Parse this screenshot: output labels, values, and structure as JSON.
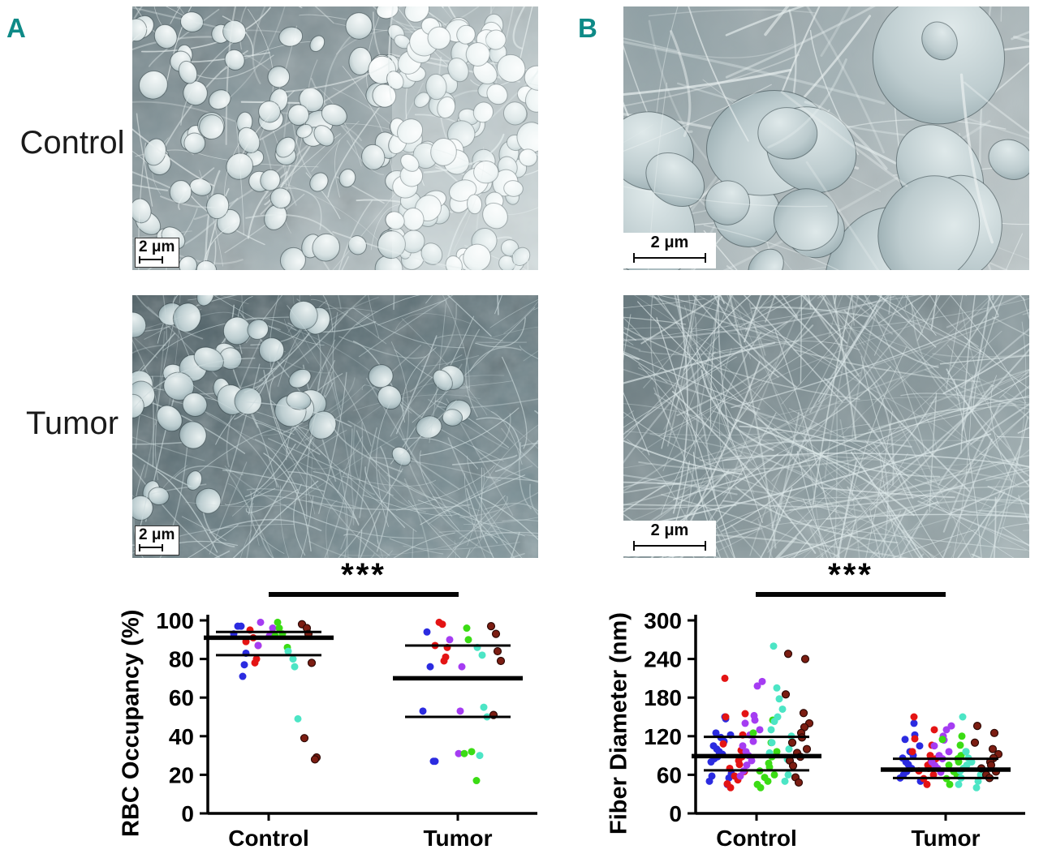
{
  "figure": {
    "panel_a_label": "A",
    "panel_b_label": "B",
    "row_labels": [
      "Control",
      "Tumor"
    ],
    "accent_color": "#0e8a87",
    "scale_bar_label": "2 μm"
  },
  "micrographs": [
    {
      "panel": "A",
      "row": "Control",
      "scale_label": "2 μm",
      "content": "SEM: red blood cells densely packed in fibrin clot"
    },
    {
      "panel": "B",
      "row": "Control",
      "scale_label": "2 μm",
      "content": "SEM close-up: thick fibrin fibers over large red blood cells"
    },
    {
      "panel": "A",
      "row": "Tumor",
      "scale_label": "2 μm",
      "content": "SEM: sparse red blood cells on dense fine fibrin network"
    },
    {
      "panel": "B",
      "row": "Tumor",
      "scale_label": "2 μm",
      "content": "SEM close-up: dense mesh of thin fibrin fibers"
    }
  ],
  "chart_data": [
    {
      "type": "scatter",
      "title": "",
      "ylabel": "RBC Occupancy (%)",
      "xlabel": "",
      "ylim": [
        0,
        100
      ],
      "yticks": [
        0,
        20,
        40,
        60,
        80,
        100
      ],
      "categories": [
        "Control",
        "Tumor"
      ],
      "significance": "***",
      "legend": "none",
      "grid": false,
      "point_colors": {
        "blue": "#2b2be0",
        "red": "#e41414",
        "purple": "#a53cf2",
        "green": "#3bdc14",
        "teal": "#4ce5c5",
        "darkred": "#7c1d12"
      },
      "line_color": "#000000",
      "groups": [
        {
          "name": "Control",
          "lines": {
            "mean": 91,
            "upper": 94,
            "lower": 82
          },
          "points": {
            "blue": [
              97,
              97,
              93,
              83,
              77,
              71
            ],
            "red": [
              95,
              91,
              89,
              87,
              80,
              78
            ],
            "purple": [
              99,
              96,
              93,
              92,
              87
            ],
            "green": [
              99,
              96,
              93,
              92,
              86
            ],
            "teal": [
              84,
              80,
              76,
              49
            ],
            "darkred": [
              98,
              96,
              93,
              78,
              39,
              29,
              28
            ]
          }
        },
        {
          "name": "Tumor",
          "lines": {
            "mean": 70,
            "upper": 87,
            "lower": 50
          },
          "points": {
            "blue": [
              94,
              76,
              53,
              27,
              27
            ],
            "red": [
              99,
              98,
              87,
              86,
              81,
              79
            ],
            "purple": [
              90,
              76,
              53,
              31
            ],
            "green": [
              96,
              90,
              32,
              31,
              17
            ],
            "teal": [
              86,
              82,
              55,
              50,
              30
            ],
            "darkred": [
              97,
              93,
              84,
              79,
              51
            ]
          }
        }
      ]
    },
    {
      "type": "scatter",
      "title": "",
      "ylabel": "Fiber Diameter (nm)",
      "xlabel": "",
      "ylim": [
        0,
        300
      ],
      "yticks": [
        0,
        60,
        120,
        180,
        240,
        300
      ],
      "categories": [
        "Control",
        "Tumor"
      ],
      "significance": "***",
      "legend": "none",
      "grid": false,
      "point_colors": {
        "blue": "#2b2be0",
        "red": "#e41414",
        "purple": "#a53cf2",
        "green": "#3bdc14",
        "teal": "#4ce5c5",
        "darkred": "#7c1d12"
      },
      "line_color": "#000000",
      "groups": [
        {
          "name": "Control",
          "lines": {
            "mean": 89,
            "upper": 119,
            "lower": 67
          },
          "points": {
            "blue": [
              150,
              147,
              125,
              122,
              118,
              112,
              105,
              100,
              96,
              92,
              88,
              85,
              80,
              62,
              58,
              55,
              50,
              45
            ],
            "red": [
              210,
              155,
              150,
              122,
              108,
              98,
              92,
              88,
              82,
              76,
              70,
              65,
              58,
              52,
              46,
              40
            ],
            "purple": [
              205,
              198,
              152,
              145,
              140,
              130,
              122,
              112,
              105,
              96,
              90,
              82,
              75,
              66,
              58
            ],
            "green": [
              145,
              125,
              110,
              96,
              88,
              78,
              72,
              66,
              60,
              56,
              50,
              45,
              40
            ],
            "teal": [
              260,
              195,
              178,
              162,
              150,
              143,
              130,
              120,
              110,
              100,
              94,
              84,
              74,
              60,
              50
            ],
            "darkred": [
              248,
              240,
              185,
              156,
              140,
              134,
              125,
              118,
              110,
              100,
              94,
              88,
              82,
              74,
              56,
              48
            ]
          }
        },
        {
          "name": "Tumor",
          "lines": {
            "mean": 68,
            "upper": 85,
            "lower": 55
          },
          "points": {
            "blue": [
              140,
              122,
              115,
              105,
              96,
              90,
              86,
              80,
              76,
              70,
              65,
              60,
              55,
              50
            ],
            "red": [
              150,
              130,
              116,
              106,
              96,
              90,
              85,
              80,
              75,
              70,
              66,
              60,
              54,
              45
            ],
            "purple": [
              136,
              130,
              120,
              114,
              105,
              96,
              90,
              85,
              80,
              74,
              70,
              64
            ],
            "green": [
              120,
              115,
              106,
              96,
              90,
              85,
              80,
              75,
              70,
              65,
              60,
              54,
              45
            ],
            "teal": [
              150,
              96,
              86,
              80,
              75,
              70,
              66,
              60,
              55,
              50,
              45,
              40
            ],
            "darkred": [
              136,
              125,
              110,
              100,
              92,
              86,
              80,
              75,
              70,
              65,
              60,
              55
            ]
          }
        }
      ]
    }
  ]
}
